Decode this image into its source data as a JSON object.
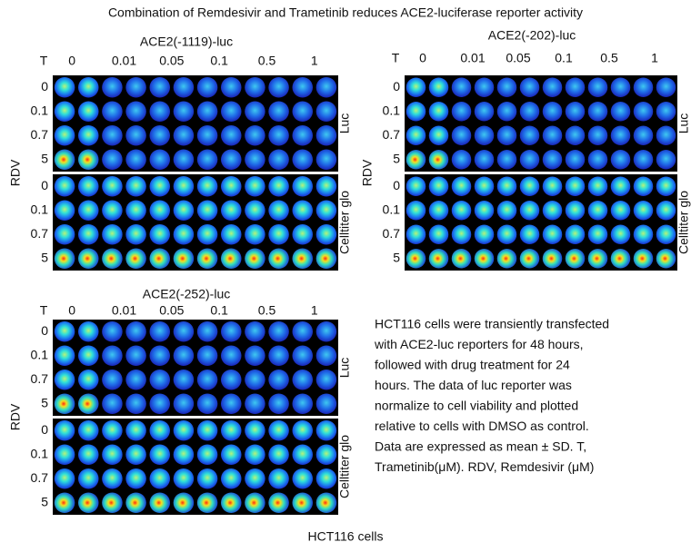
{
  "title": "Combination of Remdesivir and Trametinib reduces ACE2-luciferase reporter activity",
  "panels": [
    {
      "title": "ACE2(-1119)-luc",
      "t_label": "T",
      "concentrations": [
        "0",
        "0.01",
        "0.05",
        "0.1",
        "0.5",
        "1"
      ],
      "axis_label": "RDV",
      "sections": [
        {
          "label": "Luc",
          "rows": [
            "0",
            "0.1",
            "0.7",
            "5"
          ]
        },
        {
          "label": "Celltiter glo",
          "rows": [
            "0",
            "0.1",
            "0.7",
            "5"
          ]
        }
      ]
    },
    {
      "title": "ACE2(-202)-luc",
      "t_label": "T",
      "concentrations": [
        "0",
        "0.01",
        "0.05",
        "0.1",
        "0.5",
        "1"
      ],
      "axis_label": "RDV",
      "sections": [
        {
          "label": "Luc",
          "rows": [
            "0",
            "0.1",
            "0.7",
            "5"
          ]
        },
        {
          "label": "Celltiter glo",
          "rows": [
            "0",
            "0.1",
            "0.7",
            "5"
          ]
        }
      ]
    },
    {
      "title": "ACE2(-252)-luc",
      "t_label": "T",
      "concentrations": [
        "0",
        "0.01",
        "0.05",
        "0.1",
        "0.5",
        "1"
      ],
      "axis_label": "RDV",
      "sections": [
        {
          "label": "Luc",
          "rows": [
            "0",
            "0.1",
            "0.7",
            "5"
          ]
        },
        {
          "label": "Celltiter glo",
          "rows": [
            "0",
            "0.1",
            "0.7",
            "5"
          ]
        }
      ]
    }
  ],
  "caption": [
    "HCT116 cells were transiently transfected",
    "with ACE2-luc reporters for 48 hours,",
    "followed with drug treatment for 24",
    "hours.  The data of luc reporter was",
    "normalize to cell viability and plotted",
    "relative to  cells with DMSO as control.",
    "Data are expressed as mean ± SD. T,",
    "Trametinib(μM). RDV, Remdesivir (μM)"
  ],
  "footer": "HCT116 cells"
}
